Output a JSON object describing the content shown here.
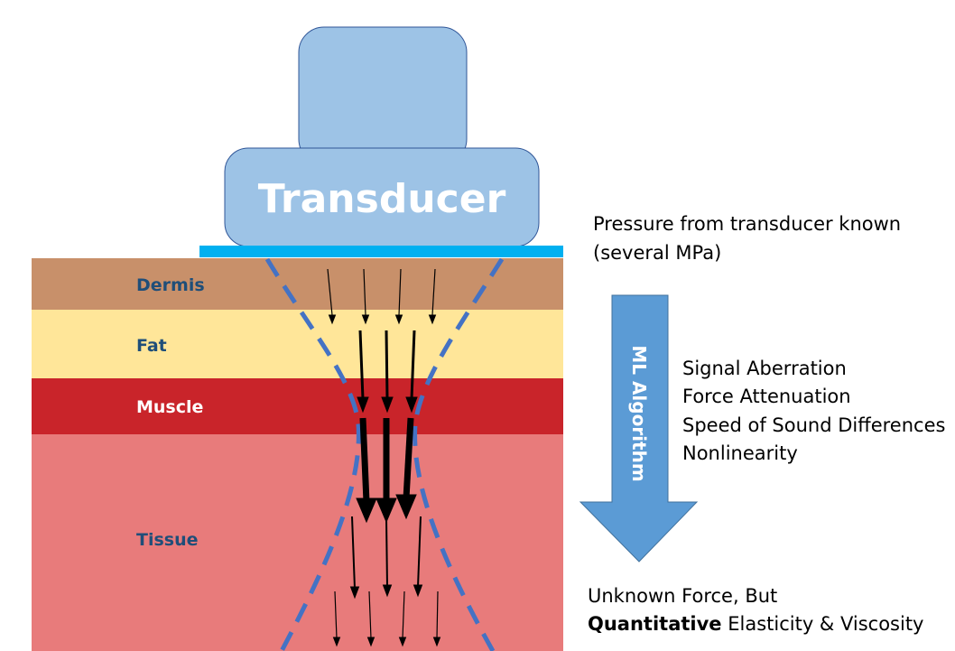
{
  "transducer": {
    "label": "Transducer",
    "body_color": "#9dc3e6",
    "face_color": "#00b0f0"
  },
  "layers": [
    {
      "name": "Dermis",
      "color": "#c8906a",
      "label_color": "#1f4e79"
    },
    {
      "name": "Fat",
      "color": "#ffe699",
      "label_color": "#1f4e79"
    },
    {
      "name": "Muscle",
      "color": "#c9242a",
      "label_color": "#ffffff"
    },
    {
      "name": "Tissue",
      "color": "#e87b7b",
      "label_color": "#1f4e79"
    }
  ],
  "algorithm": {
    "label": "ML Algorithm",
    "color": "#5b9bd5"
  },
  "notes": {
    "pressure_line1": "Pressure from transducer known",
    "pressure_line2": "(several MPa)",
    "effects": [
      "Signal Aberration",
      "Force Attenuation",
      "Speed of Sound Differences",
      "Nonlinearity"
    ],
    "result_line1": "Unknown Force, But",
    "result_bold": "Quantitative",
    "result_rest": " Elasticity & Viscosity"
  },
  "beam": {
    "line_color": "#4472c4",
    "arrow_color": "#000000"
  }
}
